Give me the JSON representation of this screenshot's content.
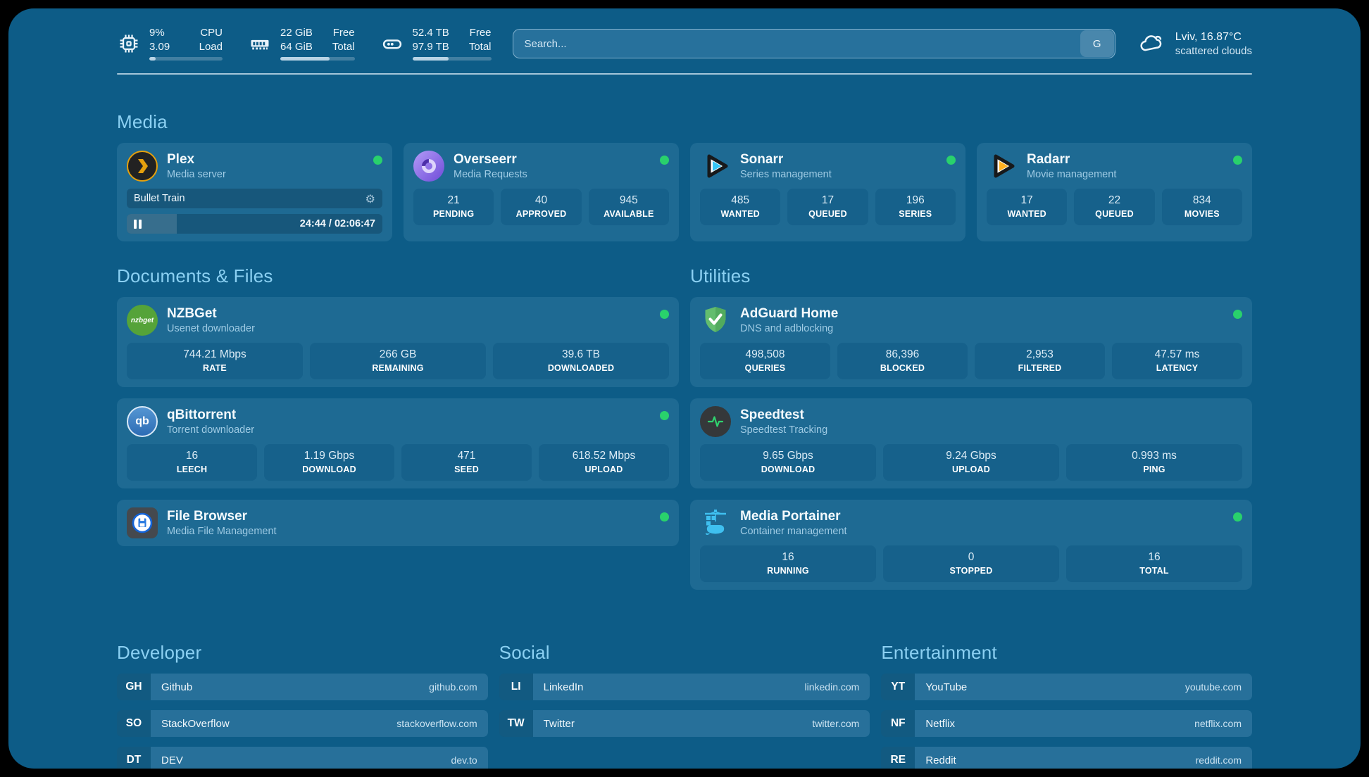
{
  "theme": {
    "background": "#0d5c87",
    "card": "#1e6a93",
    "tile": "#16618b",
    "heading": "#8bd0f2",
    "status_online": "#29d16c"
  },
  "header": {
    "system_stats": [
      {
        "icon": "cpu-chip-icon",
        "value_primary": "9%",
        "value_secondary": "3.09",
        "label_primary": "CPU",
        "label_secondary": "Load",
        "progress_pct": 9
      },
      {
        "icon": "memory-icon",
        "value_primary": "22 GiB",
        "value_secondary": "64 GiB",
        "label_primary": "Free",
        "label_secondary": "Total",
        "progress_pct": 66
      },
      {
        "icon": "disk-icon",
        "value_primary": "52.4 TB",
        "value_secondary": "97.9 TB",
        "label_primary": "Free",
        "label_secondary": "Total",
        "progress_pct": 46
      }
    ],
    "search": {
      "placeholder": "Search...",
      "engine_label": "G"
    },
    "weather": {
      "icon": "cloud-icon",
      "location_temperature": "Lviv, 16.87°C",
      "condition": "scattered clouds"
    }
  },
  "sections": {
    "media": {
      "title": "Media",
      "apps": [
        {
          "icon": "plex-icon",
          "name": "Plex",
          "subtitle": "Media server",
          "status": "online",
          "now_playing": {
            "title": "Bullet Train",
            "time_elapsed": "24:44",
            "time_separator": " / ",
            "time_total": "02:06:47",
            "progress_pct": 19.5
          }
        },
        {
          "icon": "overseerr-icon",
          "name": "Overseerr",
          "subtitle": "Media Requests",
          "status": "online",
          "stats": [
            {
              "value": "21",
              "label": "PENDING"
            },
            {
              "value": "40",
              "label": "APPROVED"
            },
            {
              "value": "945",
              "label": "AVAILABLE"
            }
          ]
        },
        {
          "icon": "sonarr-icon",
          "name": "Sonarr",
          "subtitle": "Series management",
          "status": "online",
          "stats": [
            {
              "value": "485",
              "label": "WANTED"
            },
            {
              "value": "17",
              "label": "QUEUED"
            },
            {
              "value": "196",
              "label": "SERIES"
            }
          ]
        },
        {
          "icon": "radarr-icon",
          "name": "Radarr",
          "subtitle": "Movie management",
          "status": "online",
          "stats": [
            {
              "value": "17",
              "label": "WANTED"
            },
            {
              "value": "22",
              "label": "QUEUED"
            },
            {
              "value": "834",
              "label": "MOVIES"
            }
          ]
        }
      ]
    },
    "documents_files": {
      "title": "Documents & Files",
      "apps": [
        {
          "icon": "nzbget-icon",
          "name": "NZBGet",
          "subtitle": "Usenet downloader",
          "status": "online",
          "stats": [
            {
              "value": "744.21 Mbps",
              "label": "RATE"
            },
            {
              "value": "266 GB",
              "label": "REMAINING"
            },
            {
              "value": "39.6 TB",
              "label": "DOWNLOADED"
            }
          ]
        },
        {
          "icon": "qbittorrent-icon",
          "name": "qBittorrent",
          "subtitle": "Torrent downloader",
          "status": "online",
          "stats": [
            {
              "value": "16",
              "label": "LEECH"
            },
            {
              "value": "1.19 Gbps",
              "label": "DOWNLOAD"
            },
            {
              "value": "471",
              "label": "SEED"
            },
            {
              "value": "618.52 Mbps",
              "label": "UPLOAD"
            }
          ]
        },
        {
          "icon": "filebrowser-icon",
          "name": "File Browser",
          "subtitle": "Media File Management",
          "status": "online",
          "stats": []
        }
      ]
    },
    "utilities": {
      "title": "Utilities",
      "apps": [
        {
          "icon": "adguard-icon",
          "name": "AdGuard Home",
          "subtitle": "DNS and adblocking",
          "status": "online",
          "stats": [
            {
              "value": "498,508",
              "label": "QUERIES"
            },
            {
              "value": "86,396",
              "label": "BLOCKED"
            },
            {
              "value": "2,953",
              "label": "FILTERED"
            },
            {
              "value": "47.57 ms",
              "label": "LATENCY"
            }
          ]
        },
        {
          "icon": "speedtest-icon",
          "name": "Speedtest",
          "subtitle": "Speedtest Tracking",
          "status": "online",
          "stats": [
            {
              "value": "9.65 Gbps",
              "label": "DOWNLOAD"
            },
            {
              "value": "9.24 Gbps",
              "label": "UPLOAD"
            },
            {
              "value": "0.993 ms",
              "label": "PING"
            }
          ]
        },
        {
          "icon": "portainer-icon",
          "name": "Media Portainer",
          "subtitle": "Container management",
          "status": "online",
          "stats": [
            {
              "value": "16",
              "label": "RUNNING"
            },
            {
              "value": "0",
              "label": "STOPPED"
            },
            {
              "value": "16",
              "label": "TOTAL"
            }
          ]
        }
      ]
    },
    "bookmark_groups": [
      {
        "title": "Developer",
        "items": [
          {
            "abbr": "GH",
            "label": "Github",
            "url": "github.com"
          },
          {
            "abbr": "SO",
            "label": "StackOverflow",
            "url": "stackoverflow.com"
          },
          {
            "abbr": "DT",
            "label": "DEV",
            "url": "dev.to"
          }
        ]
      },
      {
        "title": "Social",
        "items": [
          {
            "abbr": "LI",
            "label": "LinkedIn",
            "url": "linkedin.com"
          },
          {
            "abbr": "TW",
            "label": "Twitter",
            "url": "twitter.com"
          }
        ]
      },
      {
        "title": "Entertainment",
        "items": [
          {
            "abbr": "YT",
            "label": "YouTube",
            "url": "youtube.com"
          },
          {
            "abbr": "NF",
            "label": "Netflix",
            "url": "netflix.com"
          },
          {
            "abbr": "RE",
            "label": "Reddit",
            "url": "reddit.com"
          }
        ]
      }
    ]
  }
}
